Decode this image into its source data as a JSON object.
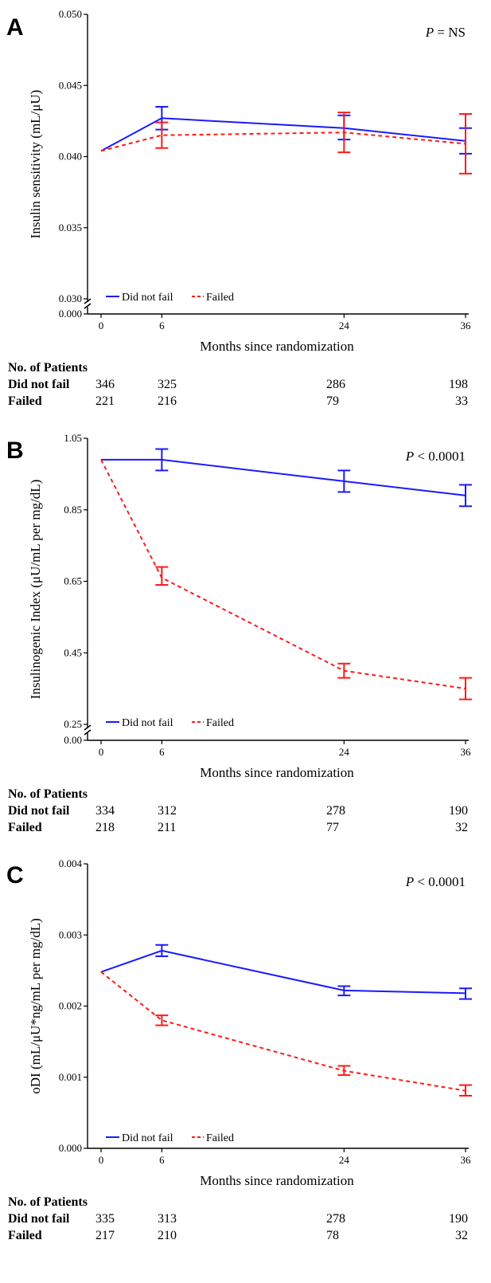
{
  "colors": {
    "did_not_fail": "#1a1aff",
    "failed": "#ff1a1a",
    "axis": "#000000"
  },
  "table_header": "No. of Patients",
  "chart_data": [
    {
      "type": "line",
      "panel": "A",
      "p_value": {
        "label": "P",
        "relation": " = ",
        "value": "NS"
      },
      "ylabel": "Insulin sensitivity (mL/μU)",
      "xlabel": "Months since randomization",
      "x": [
        0,
        6,
        24,
        36
      ],
      "x_ticks": [
        "0",
        "6",
        "24",
        "36"
      ],
      "xlim": [
        -1,
        37
      ],
      "y_break": true,
      "y_base_label": "0.000",
      "ylim": [
        0.03,
        0.05
      ],
      "y_ticks": [
        0.03,
        0.035,
        0.04,
        0.045,
        0.05
      ],
      "y_tick_labels": [
        "0.030",
        "0.035",
        "0.040",
        "0.045",
        "0.050"
      ],
      "legend": {
        "placement": "bottom-left",
        "entries": [
          "Did not fail",
          "Failed"
        ]
      },
      "series": [
        {
          "name": "Did not fail",
          "style": "solid",
          "values": [
            0.0404,
            0.0427,
            0.042,
            0.0411
          ],
          "err_low": [
            null,
            0.0419,
            0.0412,
            0.0402
          ],
          "err_high": [
            null,
            0.0435,
            0.0429,
            0.042
          ]
        },
        {
          "name": "Failed",
          "style": "dashed",
          "values": [
            0.0404,
            0.0415,
            0.0417,
            0.0409
          ],
          "err_low": [
            null,
            0.0406,
            0.0403,
            0.0388
          ],
          "err_high": [
            null,
            0.0424,
            0.0431,
            0.043
          ]
        }
      ],
      "patients": [
        {
          "label": "Did not fail",
          "counts": [
            "346",
            "325",
            "286",
            "198"
          ]
        },
        {
          "label": "Failed",
          "counts": [
            "221",
            "216",
            "79",
            "33"
          ]
        }
      ]
    },
    {
      "type": "line",
      "panel": "B",
      "p_value": {
        "label": "P",
        "relation": " < ",
        "value": "0.0001"
      },
      "ylabel": "Insulinogenic Index (μU/mL per mg/dL)",
      "xlabel": "Months since randomization",
      "x": [
        0,
        6,
        24,
        36
      ],
      "x_ticks": [
        "0",
        "6",
        "24",
        "36"
      ],
      "xlim": [
        -1,
        37
      ],
      "y_break": true,
      "y_base_label": "0.00",
      "ylim": [
        0.25,
        1.05
      ],
      "y_ticks": [
        0.25,
        0.45,
        0.65,
        0.85,
        1.05
      ],
      "y_tick_labels": [
        "0.25",
        "0.45",
        "0.65",
        "0.85",
        "1.05"
      ],
      "legend": {
        "placement": "bottom-left",
        "entries": [
          "Did not fail",
          "Failed"
        ]
      },
      "series": [
        {
          "name": "Did not fail",
          "style": "solid",
          "values": [
            0.99,
            0.99,
            0.93,
            0.89
          ],
          "err_low": [
            null,
            0.96,
            0.9,
            0.86
          ],
          "err_high": [
            null,
            1.02,
            0.96,
            0.92
          ]
        },
        {
          "name": "Failed",
          "style": "dashed",
          "values": [
            0.99,
            0.66,
            0.4,
            0.35
          ],
          "err_low": [
            null,
            0.64,
            0.38,
            0.32
          ],
          "err_high": [
            null,
            0.69,
            0.42,
            0.38
          ]
        }
      ],
      "patients": [
        {
          "label": "Did not fail",
          "counts": [
            "334",
            "312",
            "278",
            "190"
          ]
        },
        {
          "label": "Failed",
          "counts": [
            "218",
            "211",
            "77",
            "32"
          ]
        }
      ]
    },
    {
      "type": "line",
      "panel": "C",
      "p_value": {
        "label": "P",
        "relation": " < ",
        "value": "0.0001"
      },
      "ylabel": "oDI (mL/μU*ng/mL per mg/dL)",
      "xlabel": "Months since randomization",
      "x": [
        0,
        6,
        24,
        36
      ],
      "x_ticks": [
        "0",
        "6",
        "24",
        "36"
      ],
      "xlim": [
        -1,
        37
      ],
      "y_break": false,
      "ylim": [
        0.0,
        0.004
      ],
      "y_ticks": [
        0.0,
        0.001,
        0.002,
        0.003,
        0.004
      ],
      "y_tick_labels": [
        "0.000",
        "0.001",
        "0.002",
        "0.003",
        "0.004"
      ],
      "legend": {
        "placement": "bottom-left",
        "entries": [
          "Did not fail",
          "Failed"
        ]
      },
      "series": [
        {
          "name": "Did not fail",
          "style": "solid",
          "values": [
            0.00248,
            0.00278,
            0.00222,
            0.00218
          ],
          "err_low": [
            null,
            0.0027,
            0.00215,
            0.0021
          ],
          "err_high": [
            null,
            0.00286,
            0.00228,
            0.00225
          ]
        },
        {
          "name": "Failed",
          "style": "dashed",
          "values": [
            0.00248,
            0.0018,
            0.00109,
            0.00081
          ],
          "err_low": [
            null,
            0.00173,
            0.00103,
            0.00074
          ],
          "err_high": [
            null,
            0.00187,
            0.00116,
            0.00089
          ]
        }
      ],
      "patients": [
        {
          "label": "Did not fail",
          "counts": [
            "335",
            "313",
            "278",
            "190"
          ]
        },
        {
          "label": "Failed",
          "counts": [
            "217",
            "210",
            "78",
            "32"
          ]
        }
      ]
    }
  ]
}
